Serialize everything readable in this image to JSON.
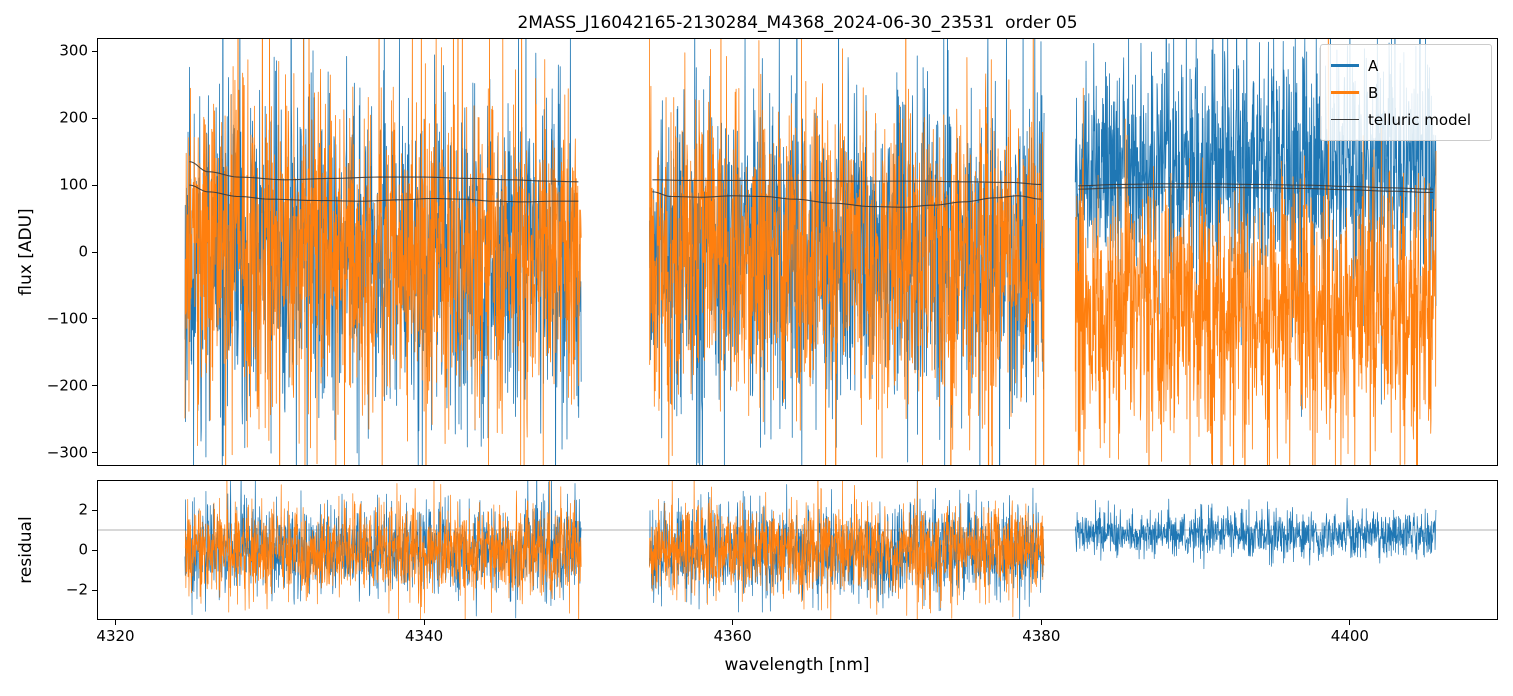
{
  "chart_data": {
    "type": "line",
    "title": "2MASS_J16042165-2130284_M4368_2024-06-30_23531  order 05",
    "xlabel": "wavelength [nm]",
    "xlim": [
      4318.8,
      4409.6
    ],
    "xticks": [
      4320,
      4340,
      4360,
      4380,
      4400
    ],
    "legend": {
      "position": "upper right",
      "entries": [
        "A",
        "B",
        "telluric model"
      ]
    },
    "colors": {
      "A": "#1f77b4",
      "B": "#ff7f0e",
      "telluric": "#3a3a3a",
      "residual_hline": "#999999"
    },
    "top_panel": {
      "ylabel": "flux [ADU]",
      "ylim": [
        -320,
        320
      ],
      "yticks": [
        300,
        200,
        100,
        0,
        -100,
        -200,
        -300
      ]
    },
    "bottom_panel": {
      "ylabel": "residual",
      "ylim": [
        -3.5,
        3.5
      ],
      "yticks": [
        2,
        0,
        -2
      ],
      "hline": 1.0
    },
    "noise": {
      "seed": 11,
      "step_nm": 0.02
    },
    "segments": [
      {
        "x_start": 4324.5,
        "x_end": 4350.2,
        "flux": {
          "A": {
            "mean": 0,
            "std": 115
          },
          "B": {
            "mean": 0,
            "std": 115
          }
        },
        "residual": {
          "A": {
            "mean": 0,
            "std": 1.15
          },
          "B": {
            "mean": 0,
            "std": 1.15
          }
        },
        "telluric_upper": [
          [
            4324.8,
            135
          ],
          [
            4326,
            120
          ],
          [
            4328,
            112
          ],
          [
            4331,
            108
          ],
          [
            4334,
            110
          ],
          [
            4337,
            112
          ],
          [
            4340,
            112
          ],
          [
            4343,
            110
          ],
          [
            4345.5,
            108
          ],
          [
            4348,
            106
          ],
          [
            4350,
            105
          ]
        ],
        "telluric_lower": [
          [
            4324.8,
            100
          ],
          [
            4326,
            90
          ],
          [
            4328,
            83
          ],
          [
            4330,
            79
          ],
          [
            4333,
            77
          ],
          [
            4336,
            76
          ],
          [
            4338.5,
            78
          ],
          [
            4340.5,
            80
          ],
          [
            4342.5,
            79
          ],
          [
            4344.5,
            76
          ],
          [
            4346.5,
            75
          ],
          [
            4348.5,
            76
          ],
          [
            4350,
            76
          ]
        ]
      },
      {
        "x_start": 4354.6,
        "x_end": 4380.2,
        "flux": {
          "A": {
            "mean": 0,
            "std": 115
          },
          "B": {
            "mean": 0,
            "std": 115
          }
        },
        "residual": {
          "A": {
            "mean": 0,
            "std": 1.15
          },
          "B": {
            "mean": 0,
            "std": 1.15
          }
        },
        "telluric_upper": [
          [
            4354.8,
            108
          ],
          [
            4357,
            107
          ],
          [
            4360,
            107
          ],
          [
            4364,
            107
          ],
          [
            4368,
            106
          ],
          [
            4372,
            106
          ],
          [
            4375,
            105
          ],
          [
            4378,
            104
          ],
          [
            4380,
            101
          ]
        ],
        "telluric_lower": [
          [
            4354.8,
            90
          ],
          [
            4356,
            83
          ],
          [
            4358,
            82
          ],
          [
            4360,
            84
          ],
          [
            4362,
            83
          ],
          [
            4364,
            79
          ],
          [
            4366.5,
            73
          ],
          [
            4369,
            68
          ],
          [
            4371,
            67
          ],
          [
            4373,
            70
          ],
          [
            4375,
            75
          ],
          [
            4377,
            81
          ],
          [
            4378.5,
            84
          ],
          [
            4380,
            79
          ]
        ]
      },
      {
        "x_start": 4382.2,
        "x_end": 4405.6,
        "flux": {
          "A": {
            "mean": 130,
            "std": 85
          },
          "B": {
            "mean": -95,
            "std": 100
          }
        },
        "residual": {
          "A": {
            "mean": 0.8,
            "std": 0.55
          }
        },
        "telluric_upper": [
          [
            4382.4,
            99
          ],
          [
            4385,
            101
          ],
          [
            4388,
            102
          ],
          [
            4391,
            102
          ],
          [
            4394,
            101
          ],
          [
            4397,
            100
          ],
          [
            4400,
            98
          ],
          [
            4402.5,
            96
          ],
          [
            4405.4,
            94
          ]
        ],
        "telluric_lower": [
          [
            4382.4,
            94
          ],
          [
            4385,
            96
          ],
          [
            4388,
            97
          ],
          [
            4391,
            97
          ],
          [
            4394,
            96
          ],
          [
            4397,
            95
          ],
          [
            4400,
            93
          ],
          [
            4402.5,
            91
          ],
          [
            4405.4,
            89
          ]
        ]
      }
    ]
  }
}
